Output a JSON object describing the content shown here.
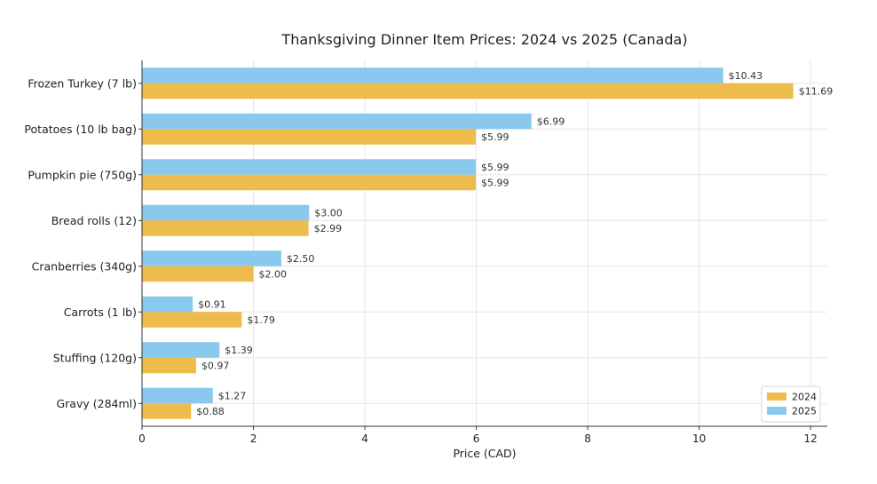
{
  "chart_data": {
    "type": "bar",
    "orientation": "horizontal",
    "title": "Thanksgiving Dinner Item Prices: 2024 vs 2025 (Canada)",
    "xlabel": "Price (CAD)",
    "ylabel": "",
    "xlim": [
      0,
      12.3
    ],
    "xticks": [
      0,
      2,
      4,
      6,
      8,
      10,
      12
    ],
    "grid": true,
    "legend_position": "bottom-right",
    "categories": [
      "Frozen Turkey (7 lb)",
      "Potatoes (10 lb bag)",
      "Pumpkin pie (750g)",
      "Bread rolls (12)",
      "Cranberries (340g)",
      "Carrots (1 lb)",
      "Stuffing (120g)",
      "Gravy (284ml)"
    ],
    "series": [
      {
        "name": "2025",
        "color": "#89c9ee",
        "values": [
          10.43,
          6.99,
          5.99,
          3.0,
          2.5,
          0.91,
          1.39,
          1.27
        ],
        "labels": [
          "$10.43",
          "$6.99",
          "$5.99",
          "$3.00",
          "$2.50",
          "$0.91",
          "$1.39",
          "$1.27"
        ]
      },
      {
        "name": "2024",
        "color": "#eebb4d",
        "values": [
          11.69,
          5.99,
          5.99,
          2.99,
          2.0,
          1.79,
          0.97,
          0.88
        ],
        "labels": [
          "$11.69",
          "$5.99",
          "$5.99",
          "$2.99",
          "$2.00",
          "$1.79",
          "$0.97",
          "$0.88"
        ]
      }
    ],
    "legend_order": [
      "2024",
      "2025"
    ]
  }
}
